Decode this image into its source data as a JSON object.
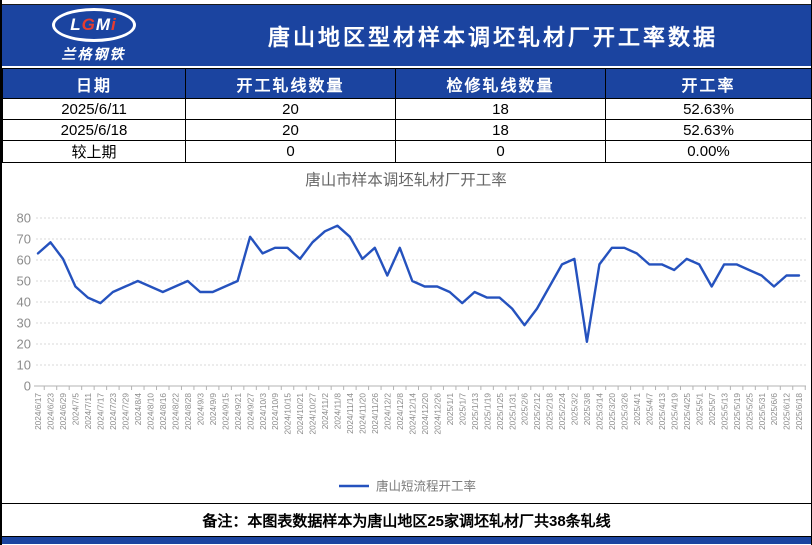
{
  "colors": {
    "header_blue": "#1b44a0",
    "line_blue": "#2552be",
    "chart_text_gray": "#8c8c8c",
    "chart_title_gray": "#666666",
    "gridline_gray": "#d9d9d9",
    "logo_red": "#e63c30"
  },
  "header": {
    "logo_text": "LGMi",
    "logo_subtext": "兰格钢铁",
    "title": "唐山地区型材样本调坯轧材厂开工率数据"
  },
  "table": {
    "columns": [
      "日期",
      "开工轧线数量",
      "检修轧线数量",
      "开工率"
    ],
    "rows": [
      [
        "2025/6/11",
        "20",
        "18",
        "52.63%"
      ],
      [
        "2025/6/18",
        "20",
        "18",
        "52.63%"
      ],
      [
        "较上期",
        "0",
        "0",
        "0.00%"
      ]
    ]
  },
  "chart_data": {
    "type": "line",
    "title": "唐山市样本调坯轧材厂开工率",
    "legend": [
      "唐山短流程开工率"
    ],
    "legend_position": "bottom",
    "grid": true,
    "ylim": [
      0,
      80
    ],
    "yticks": [
      0,
      10,
      20,
      30,
      40,
      50,
      60,
      70,
      80
    ],
    "x": [
      "2024/6/17",
      "2024/6/23",
      "2024/6/29",
      "2024/7/5",
      "2024/7/11",
      "2024/7/17",
      "2024/7/23",
      "2024/7/29",
      "2024/8/4",
      "2024/8/10",
      "2024/8/16",
      "2024/8/22",
      "2024/8/28",
      "2024/9/3",
      "2024/9/9",
      "2024/9/15",
      "2024/9/21",
      "2024/9/27",
      "2024/10/3",
      "2024/10/9",
      "2024/10/15",
      "2024/10/21",
      "2024/10/27",
      "2024/11/2",
      "2024/11/8",
      "2024/11/14",
      "2024/11/20",
      "2024/11/26",
      "2024/12/2",
      "2024/12/8",
      "2024/12/14",
      "2024/12/20",
      "2024/12/26",
      "2025/1/1",
      "2025/1/7",
      "2025/1/13",
      "2025/1/19",
      "2025/1/25",
      "2025/1/31",
      "2025/2/6",
      "2025/2/12",
      "2025/2/18",
      "2025/2/24",
      "2025/3/2",
      "2025/3/8",
      "2025/3/14",
      "2025/3/20",
      "2025/3/26",
      "2025/4/1",
      "2025/4/7",
      "2025/4/13",
      "2025/4/19",
      "2025/4/25",
      "2025/5/1",
      "2025/5/7",
      "2025/5/13",
      "2025/5/19",
      "2025/5/25",
      "2025/5/31",
      "2025/6/6",
      "2025/6/12",
      "2025/6/18"
    ],
    "series": [
      {
        "name": "唐山短流程开工率",
        "values": [
          63.16,
          68.42,
          60.53,
          47.37,
          42.11,
          39.47,
          44.74,
          47.37,
          50.0,
          47.37,
          44.74,
          47.37,
          50.0,
          44.74,
          44.74,
          47.37,
          50.0,
          71.05,
          63.16,
          65.79,
          65.79,
          60.53,
          68.42,
          73.68,
          76.32,
          71.05,
          60.53,
          65.79,
          52.63,
          65.79,
          50.0,
          47.37,
          47.37,
          44.74,
          39.47,
          44.74,
          42.11,
          42.11,
          36.84,
          28.95,
          36.84,
          47.37,
          57.89,
          60.53,
          21.05,
          57.89,
          65.79,
          65.79,
          63.16,
          57.89,
          57.89,
          55.26,
          60.53,
          57.89,
          47.37,
          57.89,
          57.89,
          55.26,
          52.63,
          47.37,
          52.63,
          52.63
        ]
      }
    ]
  },
  "note": "备注：本图表数据样本为唐山地区25家调坯轧材厂共38条轧线"
}
